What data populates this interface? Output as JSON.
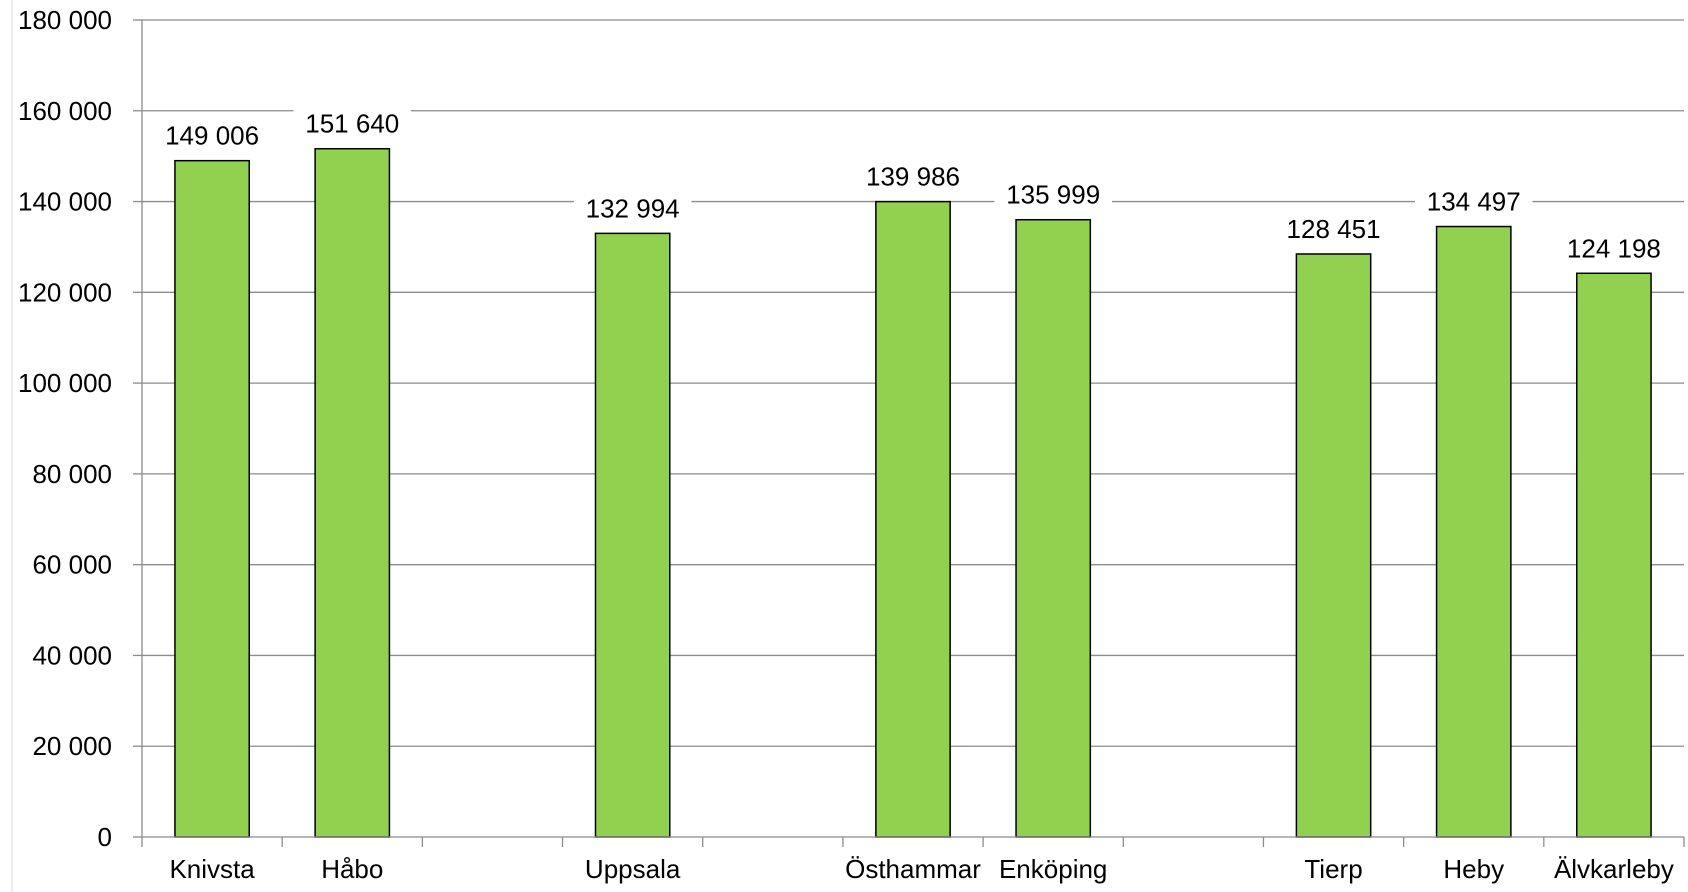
{
  "chart_data": {
    "type": "bar",
    "categories": [
      "Knivsta",
      "Håbo",
      "",
      "Uppsala",
      "",
      "Östhammar",
      "Enköping",
      "",
      "Tierp",
      "Heby",
      "Älvkarleby"
    ],
    "values": [
      149006,
      151640,
      null,
      132994,
      null,
      139986,
      135999,
      null,
      128451,
      134497,
      124198
    ],
    "data_labels": [
      "149 006",
      "151 640",
      "",
      "132 994",
      "",
      "139 986",
      "135 999",
      "",
      "128 451",
      "134 497",
      "124 198"
    ],
    "ylim": [
      0,
      180000
    ],
    "yticks": [
      0,
      20000,
      40000,
      60000,
      80000,
      100000,
      120000,
      140000,
      160000,
      180000
    ],
    "ytick_labels": [
      "0",
      "20 000",
      "40 000",
      "60 000",
      "80 000",
      "100 000",
      "120 000",
      "140 000",
      "160 000",
      "180 000"
    ],
    "grid": true,
    "legend": "none",
    "colors": {
      "bar_fill": "#92d050",
      "bar_stroke": "#000000",
      "grid": "#8c8c8c",
      "axis": "#8c8c8c"
    }
  }
}
